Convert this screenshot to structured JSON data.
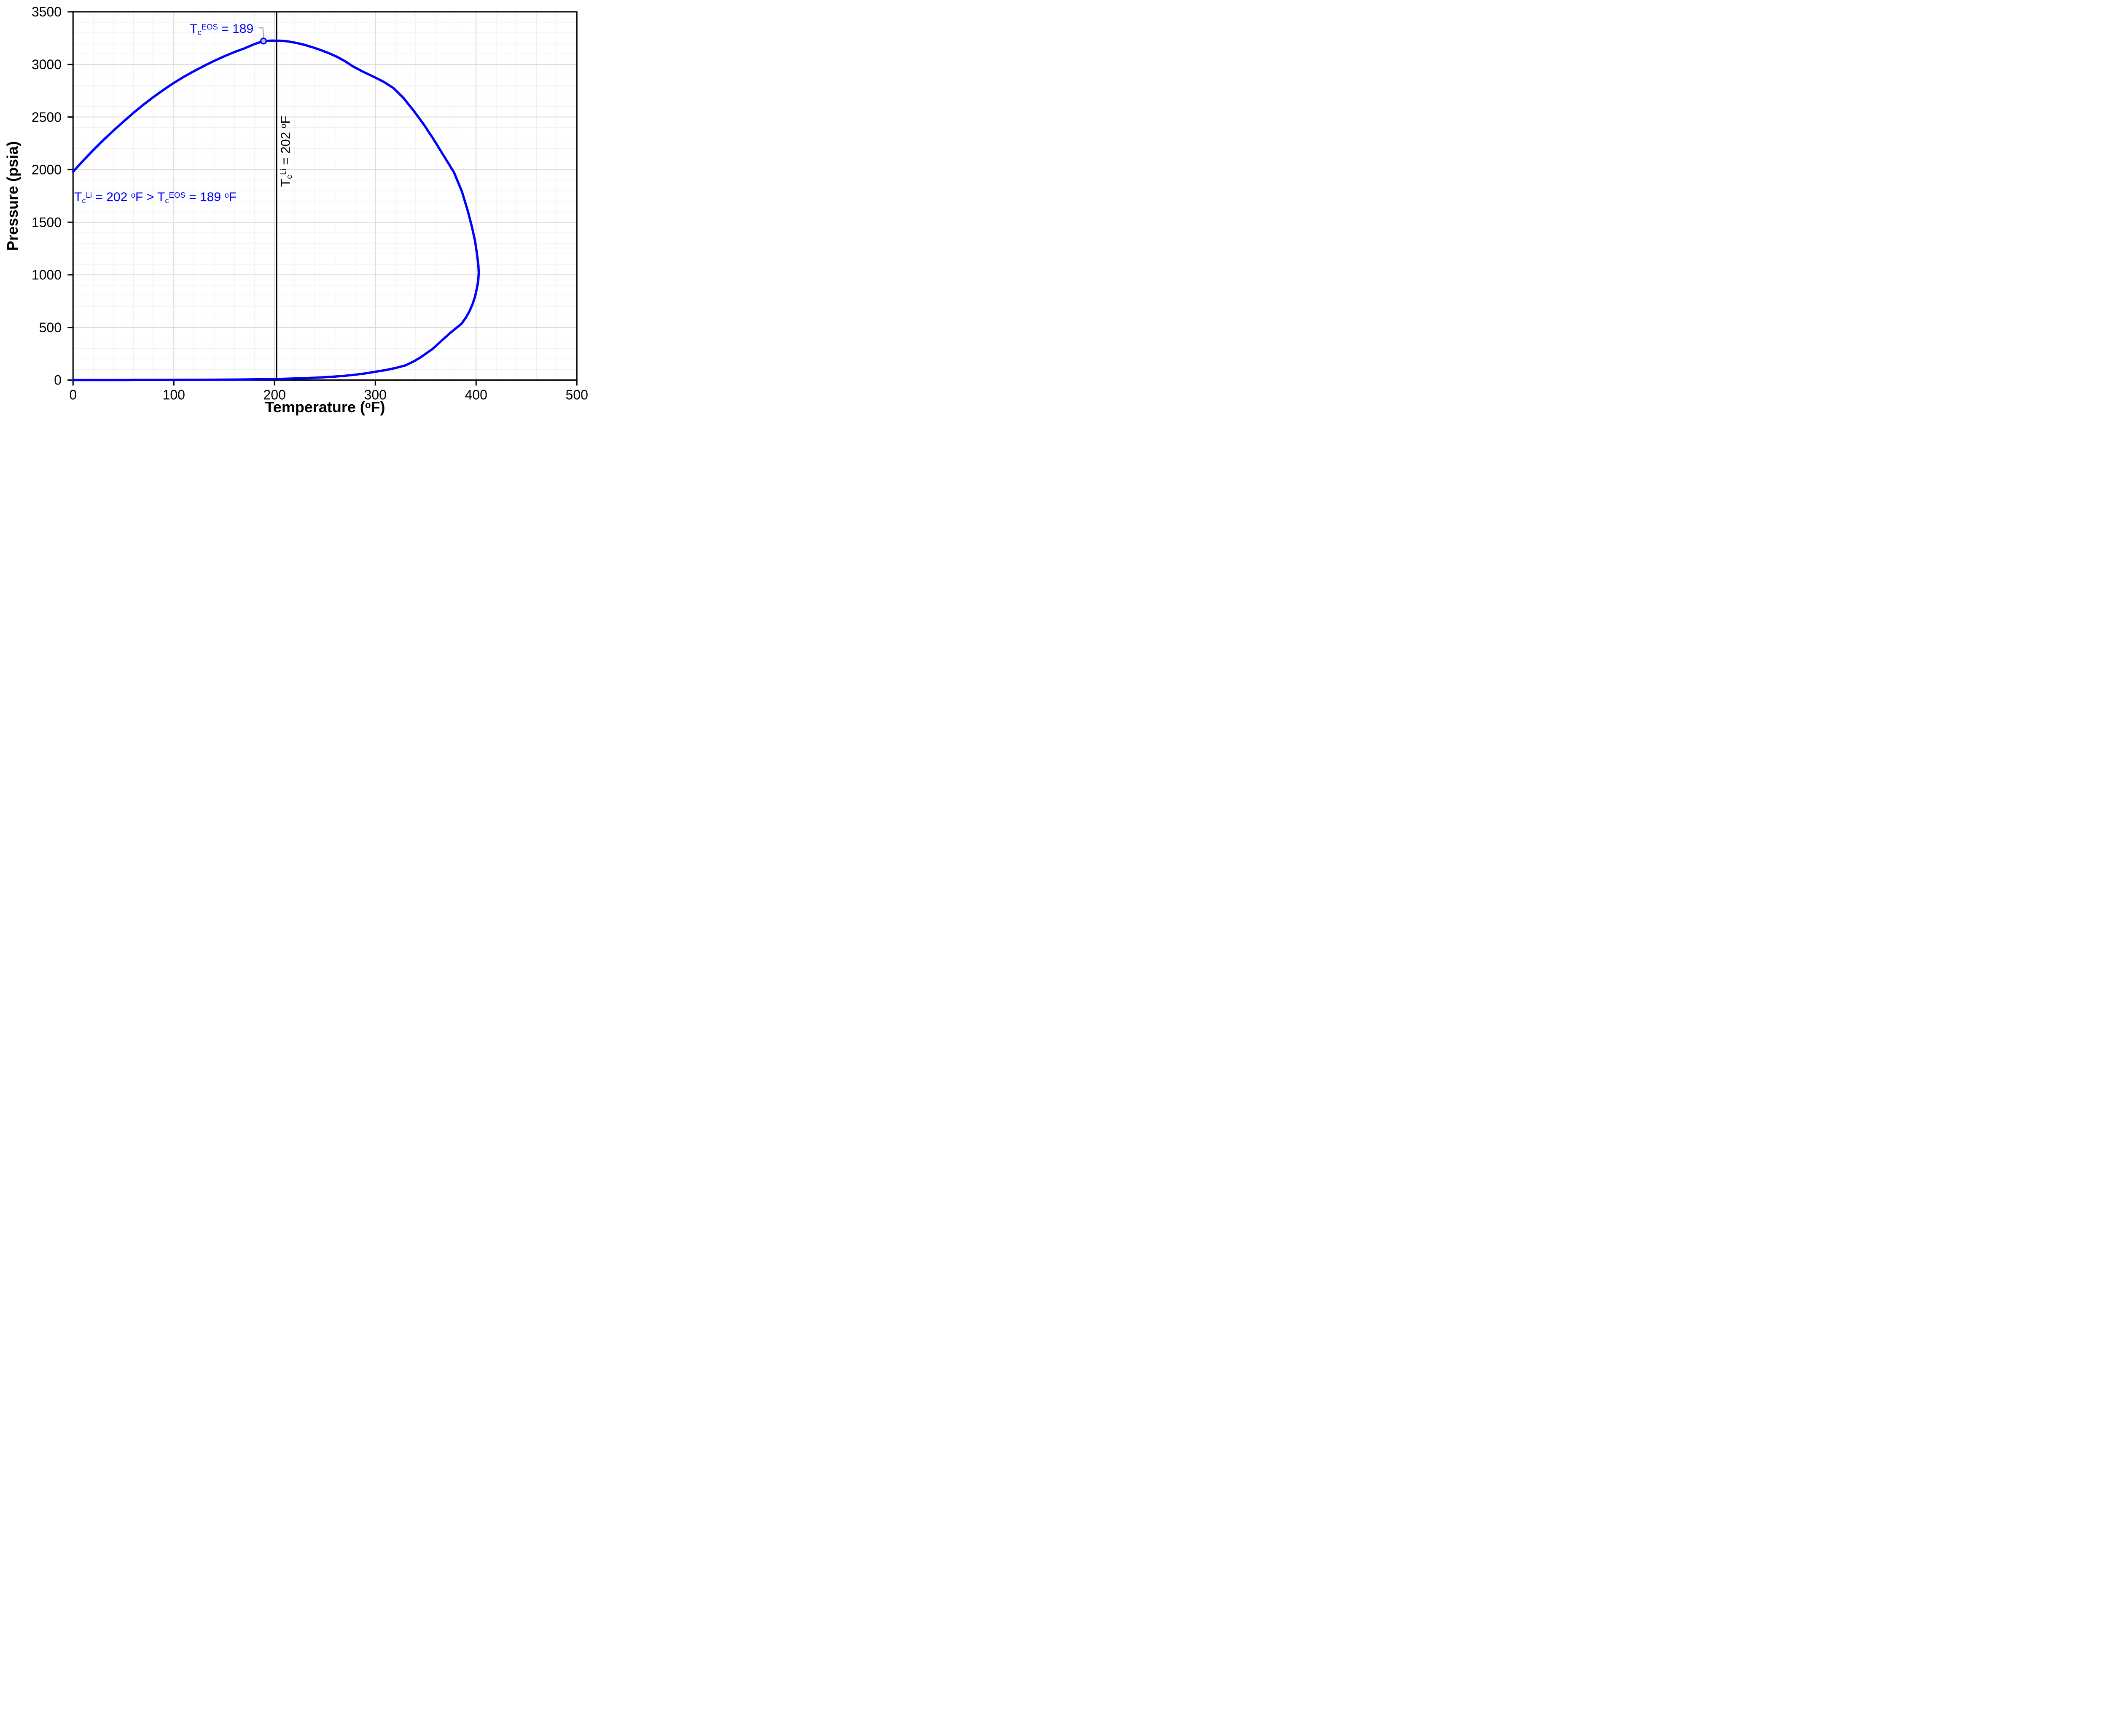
{
  "chart_data": {
    "type": "line",
    "title": "",
    "xlabel": "Temperature (°F)",
    "ylabel": "Pressure (psia)",
    "x_axis": {
      "label": "Temperature (°F)",
      "label_parts": [
        [
          "t",
          "Temperature ("
        ],
        [
          "sup",
          "o"
        ],
        [
          "t",
          "F)"
        ]
      ],
      "min": 0,
      "max": 500,
      "major_tick_step": 100,
      "minor_gridline_step": 20,
      "ticks": [
        "0",
        "100",
        "200",
        "300",
        "400",
        "500"
      ]
    },
    "y_axis": {
      "label": "Pressure (psia)",
      "label_parts": [
        [
          "t",
          "Pressure (psia)"
        ]
      ],
      "min": 0,
      "max": 3500,
      "major_tick_step": 500,
      "minor_gridline_step": 100,
      "ticks": [
        "0",
        "500",
        "1000",
        "1500",
        "2000",
        "2500",
        "3000",
        "3500"
      ]
    },
    "grid": {
      "shown": true,
      "minor_color": "#f0f0f0",
      "major_color": "#d9d9d9"
    },
    "legend": {
      "shown": false
    },
    "series": [
      {
        "name": "phase_envelope",
        "color": "#0000fe",
        "points": [
          [
            0,
            1980
          ],
          [
            10,
            2085
          ],
          [
            20,
            2185
          ],
          [
            30,
            2280
          ],
          [
            40,
            2370
          ],
          [
            50,
            2456
          ],
          [
            60,
            2540
          ],
          [
            70,
            2618
          ],
          [
            80,
            2692
          ],
          [
            90,
            2760
          ],
          [
            100,
            2824
          ],
          [
            110,
            2882
          ],
          [
            120,
            2936
          ],
          [
            130,
            2986
          ],
          [
            140,
            3033
          ],
          [
            150,
            3077
          ],
          [
            160,
            3117
          ],
          [
            170,
            3152
          ],
          [
            180,
            3193
          ],
          [
            189,
            3222
          ],
          [
            197,
            3226
          ],
          [
            206,
            3225
          ],
          [
            214,
            3218
          ],
          [
            222,
            3204
          ],
          [
            230,
            3185
          ],
          [
            238,
            3162
          ],
          [
            246,
            3136
          ],
          [
            254,
            3106
          ],
          [
            262,
            3072
          ],
          [
            270,
            3030
          ],
          [
            278,
            2980
          ],
          [
            288,
            2930
          ],
          [
            298,
            2884
          ],
          [
            308,
            2836
          ],
          [
            318,
            2775
          ],
          [
            328,
            2680
          ],
          [
            338,
            2560
          ],
          [
            348,
            2430
          ],
          [
            358,
            2285
          ],
          [
            368,
            2130
          ],
          [
            378,
            1975
          ],
          [
            386,
            1790
          ],
          [
            392,
            1600
          ],
          [
            396,
            1450
          ],
          [
            399,
            1320
          ],
          [
            401,
            1190
          ],
          [
            402.3,
            1090
          ],
          [
            402.6,
            1020
          ],
          [
            402.2,
            950
          ],
          [
            401,
            880
          ],
          [
            399,
            795
          ],
          [
            396.5,
            722
          ],
          [
            393.5,
            655
          ],
          [
            390,
            595
          ],
          [
            385.5,
            535
          ],
          [
            380,
            492
          ],
          [
            374,
            445
          ],
          [
            368.5,
            398
          ],
          [
            362.5,
            345
          ],
          [
            356.5,
            293
          ],
          [
            350,
            250
          ],
          [
            343.5,
            207
          ],
          [
            337,
            172
          ],
          [
            330,
            140
          ],
          [
            320,
            114
          ],
          [
            310,
            94
          ],
          [
            300,
            79
          ],
          [
            290,
            63
          ],
          [
            280,
            51
          ],
          [
            270,
            41
          ],
          [
            260,
            33
          ],
          [
            250,
            27
          ],
          [
            240,
            22
          ],
          [
            230,
            18
          ],
          [
            220,
            15
          ],
          [
            210,
            12
          ],
          [
            202,
            10
          ],
          [
            192,
            8
          ],
          [
            180,
            7
          ],
          [
            168,
            5
          ],
          [
            155,
            4
          ],
          [
            140,
            3
          ],
          [
            125,
            2
          ],
          [
            110,
            2
          ],
          [
            95,
            1
          ],
          [
            80,
            1
          ],
          [
            65,
            1
          ],
          [
            50,
            0
          ],
          [
            35,
            0
          ],
          [
            20,
            0
          ],
          [
            0,
            0
          ]
        ]
      }
    ],
    "critical_point": {
      "t_F": 189,
      "p_psia": 3222,
      "marker": "circle",
      "fill": "#c2c2c2",
      "stroke": "#0000fe"
    },
    "reference_line": {
      "t_F": 202,
      "color": "#000000",
      "label": "TcLi = 202 °F"
    },
    "annotations": [
      {
        "id": "tc_eos_callout",
        "text": "TcEOS = 189",
        "parts": [
          [
            "t",
            "T"
          ],
          [
            "sub",
            "c"
          ],
          [
            "sup",
            "EOS"
          ],
          [
            "t",
            " = 189"
          ]
        ],
        "color": "#0000fe",
        "leader_color": "#a6a6a6",
        "anchor": {
          "t_F": 189,
          "p_psia": 3222
        }
      },
      {
        "id": "tc_comparison",
        "text": "TcLi = 202 °F > TcEOS = 189 °F",
        "parts": [
          [
            "t",
            "T"
          ],
          [
            "sub",
            "c"
          ],
          [
            "sup",
            "Li"
          ],
          [
            "t",
            " = 202 "
          ],
          [
            "sup",
            "o"
          ],
          [
            "t",
            "F > T"
          ],
          [
            "sub",
            "c"
          ],
          [
            "sup",
            "EOS"
          ],
          [
            "t",
            " = 189 "
          ],
          [
            "sup",
            "o"
          ],
          [
            "t",
            "F"
          ]
        ],
        "color": "#0000fe"
      },
      {
        "id": "tc_li_line_label",
        "text": "TcLi = 202 °F",
        "parts": [
          [
            "t",
            "T"
          ],
          [
            "sub",
            "c"
          ],
          [
            "sup",
            "Li"
          ],
          [
            "t",
            " = 202 "
          ],
          [
            "sup",
            "o"
          ],
          [
            "t",
            "F"
          ]
        ],
        "color": "#000000",
        "rotation_deg": -90
      }
    ]
  }
}
